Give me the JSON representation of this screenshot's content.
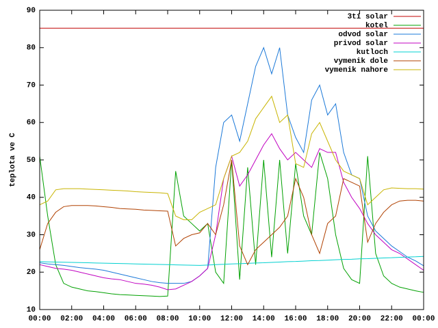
{
  "chart_data": {
    "type": "line",
    "ylabel": "teplota ve C",
    "x": [
      0,
      0.5,
      1,
      1.5,
      2,
      2.5,
      3,
      3.5,
      4,
      4.5,
      5,
      5.5,
      6,
      6.5,
      7,
      7.5,
      8,
      8.5,
      9,
      9.5,
      10,
      10.5,
      11,
      11.5,
      12,
      12.5,
      13,
      13.5,
      14,
      14.5,
      15,
      15.5,
      16,
      16.5,
      17,
      17.5,
      18,
      18.5,
      19,
      19.5,
      20,
      20.5,
      21,
      21.5,
      22,
      22.5,
      23,
      23.5,
      24
    ],
    "xlim": [
      0,
      24
    ],
    "xticks": [
      {
        "value": 0,
        "label": "00:00"
      },
      {
        "value": 2,
        "label": "02:00"
      },
      {
        "value": 4,
        "label": "04:00"
      },
      {
        "value": 6,
        "label": "06:00"
      },
      {
        "value": 8,
        "label": "08:00"
      },
      {
        "value": 10,
        "label": "10:00"
      },
      {
        "value": 12,
        "label": "12:00"
      },
      {
        "value": 14,
        "label": "14:00"
      },
      {
        "value": 16,
        "label": "16:00"
      },
      {
        "value": 18,
        "label": "18:00"
      },
      {
        "value": 20,
        "label": "20:00"
      },
      {
        "value": 22,
        "label": "22:00"
      },
      {
        "value": 24,
        "label": "00:00"
      }
    ],
    "ylim": [
      10,
      90
    ],
    "yticks": [
      10,
      20,
      30,
      40,
      50,
      60,
      70,
      80,
      90
    ],
    "legend": "top-right",
    "series": [
      {
        "name": "3ti solar",
        "color": "#c00000",
        "values": [
          85.2,
          85.2,
          85.2,
          85.2,
          85.2,
          85.2,
          85.2,
          85.2,
          85.2,
          85.2,
          85.2,
          85.2,
          85.2,
          85.2,
          85.2,
          85.2,
          85.2,
          85.2,
          85.2,
          85.2,
          85.2,
          85.2,
          85.2,
          85.2,
          85.2,
          85.2,
          85.2,
          85.2,
          85.2,
          85.2,
          85.2,
          85.2,
          85.2,
          85.2,
          85.2,
          85.2,
          85.2,
          85.2,
          85.2,
          85.2,
          85.2,
          85.2,
          85.2,
          85.2,
          85.2,
          85.2,
          85.2,
          85.2,
          85.2
        ]
      },
      {
        "name": "kotel",
        "color": "#00a000",
        "values": [
          51,
          35,
          22,
          17,
          16,
          15.5,
          15,
          14.8,
          14.5,
          14.2,
          14,
          13.9,
          13.8,
          13.7,
          13.6,
          13.5,
          13.6,
          47,
          35,
          33,
          31,
          33,
          20,
          17,
          50,
          18,
          48,
          22,
          50,
          24,
          50,
          25,
          49,
          35,
          30,
          52,
          45,
          30,
          21,
          18,
          17,
          51,
          25,
          19,
          17,
          16,
          15.5,
          15,
          14.6
        ]
      },
      {
        "name": "odvod solar",
        "color": "#1a78d8",
        "values": [
          22.5,
          22.2,
          22,
          21.8,
          21.5,
          21.2,
          21,
          20.8,
          20.5,
          20,
          19.5,
          19,
          18.5,
          18,
          17.5,
          17.2,
          17,
          17,
          17,
          17.5,
          19,
          21,
          48,
          60,
          62,
          55,
          65,
          75,
          80,
          73,
          80,
          62,
          56,
          52,
          66,
          70,
          62,
          65,
          52,
          46,
          45,
          35,
          31,
          29,
          27,
          25.5,
          24,
          23,
          21.7
        ]
      },
      {
        "name": "privod solar",
        "color": "#c000c0",
        "values": [
          22,
          21.5,
          21,
          20.8,
          20.5,
          20,
          19.5,
          19,
          18.5,
          18.2,
          18,
          17.5,
          17,
          16.8,
          16.5,
          16,
          15.3,
          15.5,
          16.5,
          17.5,
          19,
          21,
          30,
          45,
          51,
          43,
          46,
          50,
          54,
          57,
          53,
          50,
          52,
          50,
          48,
          53,
          52,
          52,
          44,
          40,
          37,
          33,
          30,
          28,
          26,
          25,
          23.5,
          22,
          20.5
        ]
      },
      {
        "name": "kutloch",
        "color": "#00d0d0",
        "values": [
          22.8,
          22.75,
          22.7,
          22.65,
          22.6,
          22.55,
          22.5,
          22.45,
          22.4,
          22.35,
          22.3,
          22.25,
          22.2,
          22.15,
          22.1,
          22.05,
          22,
          21.95,
          21.9,
          21.85,
          21.8,
          21.9,
          22,
          22.1,
          22.2,
          22.25,
          22.35,
          22.45,
          22.5,
          22.6,
          22.7,
          22.8,
          22.85,
          22.95,
          23.05,
          23.1,
          23.2,
          23.3,
          23.4,
          23.45,
          23.55,
          23.6,
          23.7,
          23.8,
          23.85,
          23.95,
          24.05,
          24.1,
          24.2
        ]
      },
      {
        "name": "vymenik dole",
        "color": "#b04000",
        "values": [
          26,
          33,
          36,
          37.5,
          37.8,
          37.8,
          37.8,
          37.7,
          37.5,
          37.3,
          37,
          36.9,
          36.8,
          36.6,
          36.5,
          36.4,
          36.3,
          27,
          29,
          30,
          30.5,
          33,
          30,
          38,
          50,
          27,
          22,
          26,
          28,
          30,
          32,
          35,
          45,
          40,
          30,
          25,
          33,
          35,
          45,
          44,
          43,
          28,
          33,
          36,
          38,
          39,
          39.2,
          39.2,
          39
        ]
      },
      {
        "name": "vymenik nahore",
        "color": "#c8b400",
        "values": [
          38,
          39,
          42,
          42.3,
          42.3,
          42.3,
          42.2,
          42.1,
          42,
          41.9,
          41.8,
          41.7,
          41.5,
          41.4,
          41.3,
          41.2,
          41,
          35,
          34,
          34,
          36,
          37,
          38,
          45,
          51,
          52,
          55,
          61,
          64,
          67,
          60,
          62,
          49,
          48,
          57,
          60,
          55,
          50,
          47,
          46,
          45,
          38,
          40,
          42,
          42.5,
          42.4,
          42.3,
          42.3,
          42.2
        ]
      }
    ]
  }
}
